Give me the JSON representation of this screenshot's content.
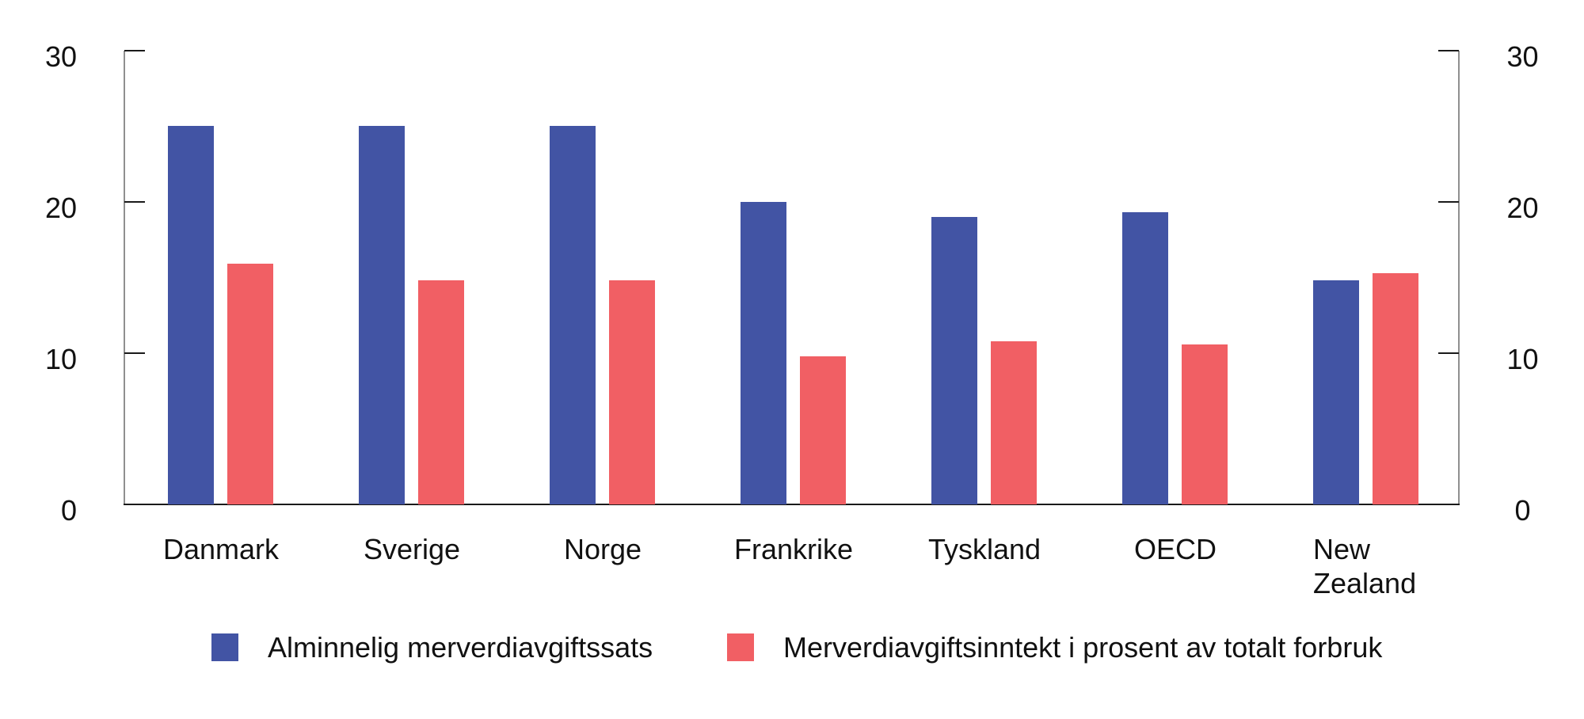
{
  "chart_data": {
    "type": "bar",
    "title": "",
    "xlabel": "",
    "ylabel": "",
    "categories": [
      "Danmark",
      "Sverige",
      "Norge",
      "Frankrike",
      "Tyskland",
      "OECD",
      "New Zealand"
    ],
    "series": [
      {
        "name": "Alminnelig merverdiavgiftssats",
        "color": "#4254a4",
        "values": [
          25,
          25,
          25,
          20,
          19,
          19.3,
          14.8
        ]
      },
      {
        "name": "Merverdiavgiftsinntekt i prosent av totalt forbruk",
        "color": "#f15f64",
        "values": [
          15.9,
          14.8,
          14.8,
          9.8,
          10.8,
          10.6,
          15.3
        ]
      }
    ],
    "ylim": [
      0,
      30
    ],
    "yticks": [
      0,
      10,
      20,
      30
    ],
    "ytick_labels": [
      "0",
      "10",
      "20",
      "30"
    ],
    "y_axis_sides": [
      "left",
      "right"
    ],
    "grid": false,
    "legend_position": "bottom"
  }
}
